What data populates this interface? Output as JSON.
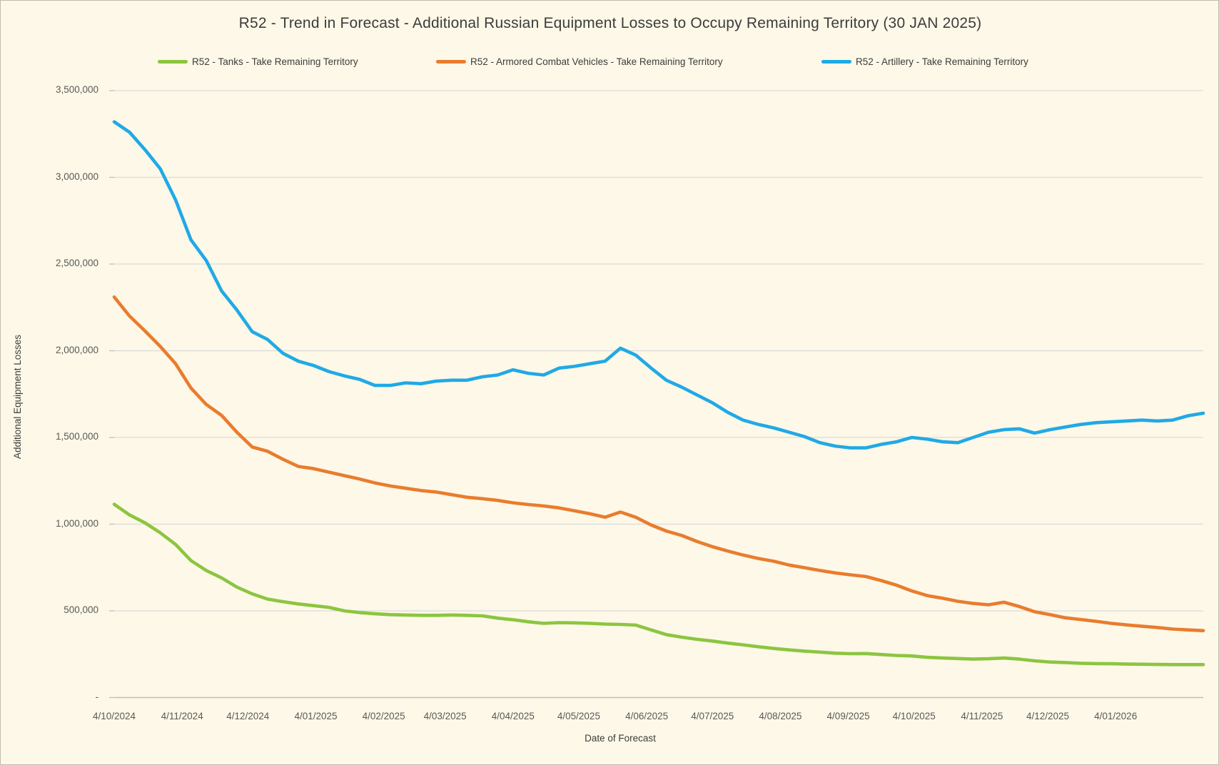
{
  "window": {
    "background_color": "#FDF8E7",
    "border_color": "#BFBCB2",
    "gridline_color": "#DBDBDB",
    "axis_line_color": "#BFBFBF",
    "text_color": "#3C3C3C",
    "tick_text_color": "#595959"
  },
  "chart_data": {
    "type": "line",
    "title": "R52 - Trend in Forecast - Additional Russian Equipment Losses to Occupy Remaining Territory (30 JAN 2025)",
    "xlabel": "Date of Forecast",
    "ylabel": "Additional Equipment Losses",
    "legend_position": "top",
    "grid": "horizontal",
    "x_axis": {
      "start_date": "4/10/2024",
      "point_interval_days": 7,
      "total_days": 497,
      "tick_labels": [
        "4/10/2024",
        "4/11/2024",
        "4/12/2024",
        "4/01/2025",
        "4/02/2025",
        "4/03/2025",
        "4/04/2025",
        "4/05/2025",
        "4/06/2025",
        "4/07/2025",
        "4/08/2025",
        "4/09/2025",
        "4/10/2025",
        "4/11/2025",
        "4/12/2025",
        "4/01/2026"
      ],
      "tick_day_offsets": [
        0,
        31,
        61,
        92,
        123,
        151,
        182,
        212,
        243,
        273,
        304,
        335,
        365,
        396,
        426,
        457
      ]
    },
    "y_axis": {
      "min": 0,
      "max": 3500000,
      "tick_values": [
        3500000,
        3000000,
        2500000,
        2000000,
        1500000,
        1000000,
        500000,
        0
      ],
      "tick_labels": [
        "3,500,000",
        "3,000,000",
        "2,500,000",
        "2,000,000",
        "1,500,000",
        "1,000,000",
        "500,000",
        "-"
      ]
    },
    "series": [
      {
        "name": "R52 - Tanks - Take Remaining Territory",
        "color": "#8CC540",
        "values": [
          1115000,
          1053000,
          1008000,
          950000,
          883000,
          790000,
          733000,
          690000,
          637000,
          598000,
          568000,
          553000,
          540000,
          530000,
          520000,
          500000,
          490000,
          483000,
          478000,
          476000,
          474000,
          474000,
          476000,
          474000,
          471000,
          458000,
          449000,
          437000,
          428000,
          432000,
          431000,
          428000,
          424000,
          422000,
          418000,
          390000,
          363000,
          348000,
          336000,
          326000,
          314000,
          304000,
          293000,
          283000,
          275000,
          268000,
          262000,
          256000,
          253000,
          254000,
          248000,
          243000,
          240000,
          232000,
          228000,
          225000,
          222000,
          224000,
          228000,
          222000,
          212000,
          205000,
          202000,
          198000,
          196000,
          195000,
          193000,
          192000,
          191000,
          190000,
          190000,
          190000
        ]
      },
      {
        "name": "R52 - Armored Combat Vehicles - Take Remaining Territory",
        "color": "#E97C2E",
        "values": [
          2310000,
          2200000,
          2115000,
          2025000,
          1925000,
          1785000,
          1690000,
          1627000,
          1530000,
          1445000,
          1420000,
          1374000,
          1333000,
          1320000,
          1300000,
          1280000,
          1260000,
          1238000,
          1220000,
          1207000,
          1194000,
          1185000,
          1170000,
          1155000,
          1147000,
          1137000,
          1123000,
          1113000,
          1105000,
          1094000,
          1077000,
          1060000,
          1040000,
          1070000,
          1040000,
          995000,
          960000,
          935000,
          900000,
          870000,
          845000,
          822000,
          802000,
          786000,
          764000,
          749000,
          733000,
          719000,
          708000,
          698000,
          675000,
          648000,
          615000,
          588000,
          573000,
          555000,
          543000,
          535000,
          550000,
          525000,
          495000,
          478000,
          460000,
          450000,
          440000,
          428000,
          419000,
          411000,
          404000,
          395000,
          390000,
          386000
        ]
      },
      {
        "name": "R52 - Artillery - Take Remaining Territory",
        "color": "#20A9E6",
        "values": [
          3320000,
          3260000,
          3160000,
          3050000,
          2870000,
          2640000,
          2520000,
          2345000,
          2235000,
          2110000,
          2065000,
          1985000,
          1940000,
          1915000,
          1880000,
          1855000,
          1835000,
          1800000,
          1800000,
          1815000,
          1810000,
          1825000,
          1830000,
          1830000,
          1850000,
          1860000,
          1890000,
          1870000,
          1860000,
          1900000,
          1910000,
          1925000,
          1940000,
          2015000,
          1975000,
          1900000,
          1830000,
          1790000,
          1745000,
          1700000,
          1645000,
          1600000,
          1575000,
          1555000,
          1530000,
          1505000,
          1470000,
          1450000,
          1440000,
          1440000,
          1460000,
          1475000,
          1500000,
          1490000,
          1475000,
          1470000,
          1500000,
          1530000,
          1545000,
          1550000,
          1525000,
          1545000,
          1560000,
          1575000,
          1585000,
          1590000,
          1595000,
          1600000,
          1595000,
          1600000,
          1625000,
          1640000
        ]
      }
    ]
  }
}
